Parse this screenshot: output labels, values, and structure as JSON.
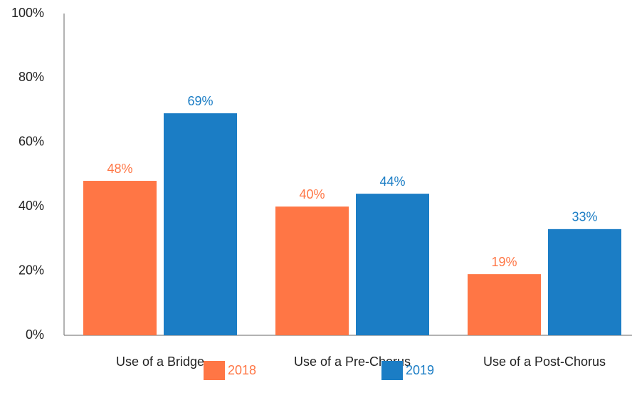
{
  "chart_data": {
    "type": "bar",
    "categories": [
      "Use of a Bridge",
      "Use of a Pre-Chorus",
      "Use of a Post-Chorus"
    ],
    "series": [
      {
        "name": "2018",
        "color": "#ff7645",
        "values": [
          48,
          40,
          19
        ],
        "value_labels": [
          "48%",
          "40%",
          "19%"
        ]
      },
      {
        "name": "2019",
        "color": "#1b7dc5",
        "values": [
          69,
          44,
          33
        ],
        "value_labels": [
          "69%",
          "44%",
          "33%"
        ]
      }
    ],
    "ylim": [
      0,
      100
    ],
    "yticks": [
      {
        "value": 0,
        "label": "0%"
      },
      {
        "value": 20,
        "label": "20%"
      },
      {
        "value": 40,
        "label": "40%"
      },
      {
        "value": 60,
        "label": "60%"
      },
      {
        "value": 80,
        "label": "80%"
      },
      {
        "value": 100,
        "label": "100%"
      }
    ],
    "grid": false,
    "legend": "bottom"
  }
}
